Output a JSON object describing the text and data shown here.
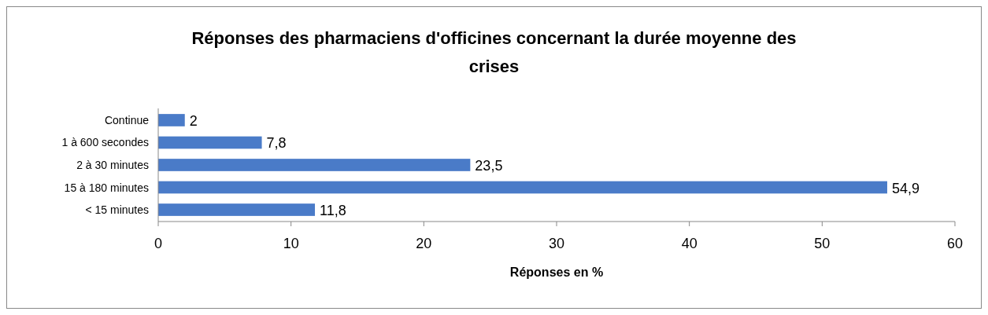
{
  "chart_data": {
    "type": "bar",
    "orientation": "horizontal",
    "title": "Réponses des pharmaciens d'officines concernant la durée moyenne des crises",
    "xlabel": "Réponses en %",
    "categories": [
      "Continue",
      "1 à 600 secondes",
      "2 à 30 minutes",
      "15 à 180 minutes",
      "< 15 minutes"
    ],
    "values": [
      2,
      7.8,
      23.5,
      54.9,
      11.8
    ],
    "value_labels": [
      "2",
      "7,8",
      "23,5",
      "54,9",
      "11,8"
    ],
    "color": "#4a7bc8",
    "xlim": [
      0,
      60
    ],
    "xticks": [
      0,
      10,
      20,
      30,
      40,
      50,
      60
    ],
    "grid": false
  }
}
